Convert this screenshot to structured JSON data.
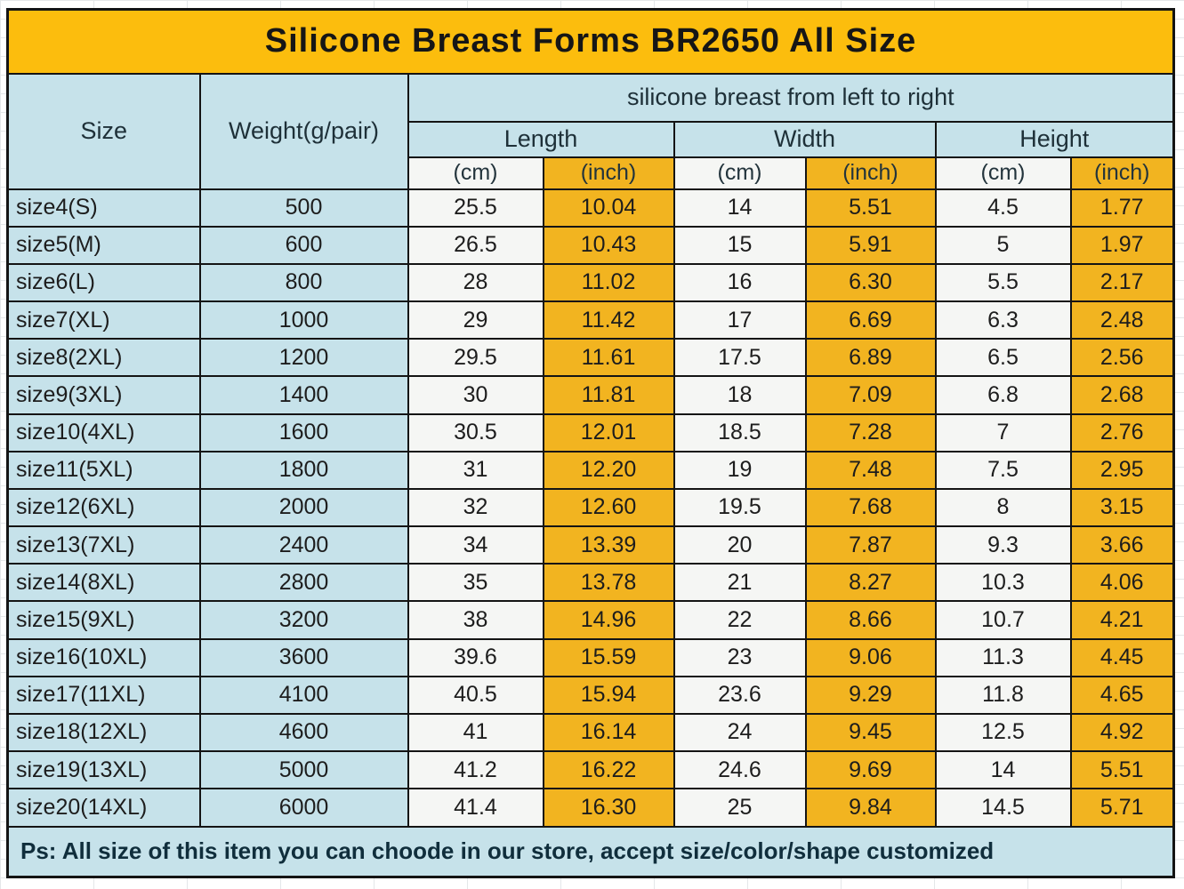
{
  "chart_data": {
    "type": "table",
    "title": "Silicone Breast Forms BR2650 All Size",
    "group_header": "silicone breast from left to right",
    "columns": {
      "size": "Size",
      "weight": "Weight(g/pair)",
      "dims": [
        "Length",
        "Width",
        "Height"
      ],
      "unit_cm": "(cm)",
      "unit_inch": "(inch)"
    },
    "row_fields": [
      "size",
      "weight_g_pair",
      "length_cm",
      "length_inch",
      "width_cm",
      "width_inch",
      "height_cm",
      "height_inch"
    ],
    "rows": [
      [
        "size4(S)",
        "500",
        "25.5",
        "10.04",
        "14",
        "5.51",
        "4.5",
        "1.77"
      ],
      [
        "size5(M)",
        "600",
        "26.5",
        "10.43",
        "15",
        "5.91",
        "5",
        "1.97"
      ],
      [
        "size6(L)",
        "800",
        "28",
        "11.02",
        "16",
        "6.30",
        "5.5",
        "2.17"
      ],
      [
        "size7(XL)",
        "1000",
        "29",
        "11.42",
        "17",
        "6.69",
        "6.3",
        "2.48"
      ],
      [
        "size8(2XL)",
        "1200",
        "29.5",
        "11.61",
        "17.5",
        "6.89",
        "6.5",
        "2.56"
      ],
      [
        "size9(3XL)",
        "1400",
        "30",
        "11.81",
        "18",
        "7.09",
        "6.8",
        "2.68"
      ],
      [
        "size10(4XL)",
        "1600",
        "30.5",
        "12.01",
        "18.5",
        "7.28",
        "7",
        "2.76"
      ],
      [
        "size11(5XL)",
        "1800",
        "31",
        "12.20",
        "19",
        "7.48",
        "7.5",
        "2.95"
      ],
      [
        "size12(6XL)",
        "2000",
        "32",
        "12.60",
        "19.5",
        "7.68",
        "8",
        "3.15"
      ],
      [
        "size13(7XL)",
        "2400",
        "34",
        "13.39",
        "20",
        "7.87",
        "9.3",
        "3.66"
      ],
      [
        "size14(8XL)",
        "2800",
        "35",
        "13.78",
        "21",
        "8.27",
        "10.3",
        "4.06"
      ],
      [
        "size15(9XL)",
        "3200",
        "38",
        "14.96",
        "22",
        "8.66",
        "10.7",
        "4.21"
      ],
      [
        "size16(10XL)",
        "3600",
        "39.6",
        "15.59",
        "23",
        "9.06",
        "11.3",
        "4.45"
      ],
      [
        "size17(11XL)",
        "4100",
        "40.5",
        "15.94",
        "23.6",
        "9.29",
        "11.8",
        "4.65"
      ],
      [
        "size18(12XL)",
        "4600",
        "41",
        "16.14",
        "24",
        "9.45",
        "12.5",
        "4.92"
      ],
      [
        "size19(13XL)",
        "5000",
        "41.2",
        "16.22",
        "24.6",
        "9.69",
        "14",
        "5.51"
      ],
      [
        "size20(14XL)",
        "6000",
        "41.4",
        "16.30",
        "25",
        "9.84",
        "14.5",
        "5.71"
      ]
    ],
    "footer": "Ps: All size of this item you can choode in our store, accept size/color/shape customized"
  },
  "colors": {
    "title_bg": "#fcbd0d",
    "inch_bg": "#f2b420",
    "header_bg": "#c6e2ea",
    "cm_bg": "#f5f6f4",
    "border": "#141414",
    "footer_text": "#102e3c"
  }
}
